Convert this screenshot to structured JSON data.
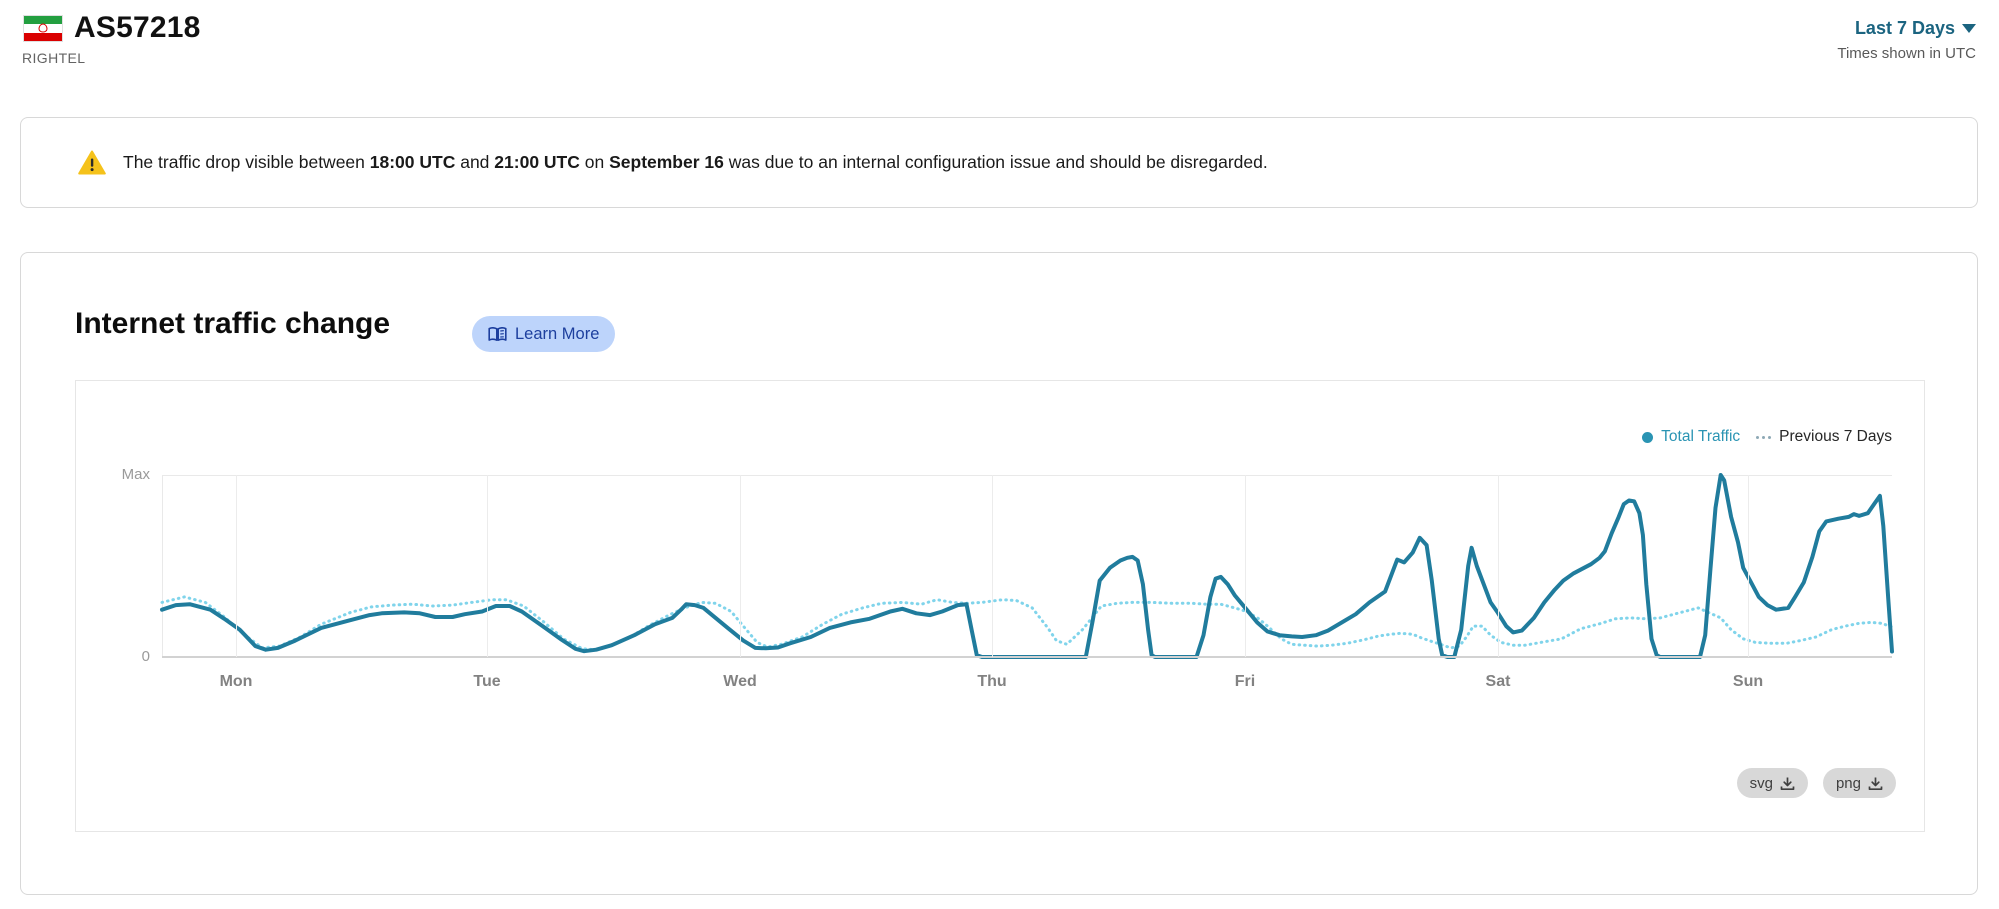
{
  "header": {
    "asn": "AS57218",
    "org": "RIGHTEL",
    "flag": "iran-flag",
    "range_label": "Last 7 Days",
    "tz_note": "Times shown in UTC"
  },
  "notice": {
    "icon": "warning-icon",
    "pre": "The traffic drop visible between ",
    "b1": "18:00 UTC",
    "mid1": " and ",
    "b2": "21:00 UTC",
    "mid2": " on ",
    "b3": "September 16",
    "post": " was due to an internal configuration issue and should be disregarded."
  },
  "card": {
    "title": "Internet traffic change",
    "learn_more_label": "Learn More"
  },
  "downloads": {
    "svg_label": "svg",
    "png_label": "png"
  },
  "chart_data": {
    "type": "line",
    "title": "Internet traffic change",
    "y_axis": {
      "max_label": "Max",
      "zero_label": "0",
      "range": [
        0,
        1
      ]
    },
    "x_axis": {
      "ticks": [
        {
          "label": "Mon",
          "t": 0.043
        },
        {
          "label": "Tue",
          "t": 0.188
        },
        {
          "label": "Wed",
          "t": 0.334
        },
        {
          "label": "Thu",
          "t": 0.48
        },
        {
          "label": "Fri",
          "t": 0.626
        },
        {
          "label": "Sat",
          "t": 0.772
        },
        {
          "label": "Sun",
          "t": 0.917
        }
      ]
    },
    "legend": [
      {
        "label": "Total Traffic",
        "color": "#2a94b3",
        "style": "solid"
      },
      {
        "label": "Previous 7 Days",
        "color": "#80d4eb",
        "style": "dotted"
      }
    ],
    "series": [
      {
        "name": "Previous 7 Days",
        "color": "#80d4eb",
        "style": "dotted",
        "width": 3,
        "points": [
          [
            0,
            0.3
          ],
          [
            0.013,
            0.33
          ],
          [
            0.025,
            0.3
          ],
          [
            0.036,
            0.22
          ],
          [
            0.048,
            0.12
          ],
          [
            0.058,
            0.05
          ],
          [
            0.068,
            0.06
          ],
          [
            0.08,
            0.11
          ],
          [
            0.092,
            0.18
          ],
          [
            0.109,
            0.245
          ],
          [
            0.121,
            0.275
          ],
          [
            0.133,
            0.285
          ],
          [
            0.145,
            0.29
          ],
          [
            0.156,
            0.28
          ],
          [
            0.168,
            0.285
          ],
          [
            0.179,
            0.3
          ],
          [
            0.191,
            0.315
          ],
          [
            0.199,
            0.315
          ],
          [
            0.209,
            0.28
          ],
          [
            0.221,
            0.19
          ],
          [
            0.232,
            0.1
          ],
          [
            0.243,
            0.045
          ],
          [
            0.25,
            0.04
          ],
          [
            0.258,
            0.06
          ],
          [
            0.269,
            0.1
          ],
          [
            0.281,
            0.17
          ],
          [
            0.293,
            0.23
          ],
          [
            0.302,
            0.27
          ],
          [
            0.312,
            0.3
          ],
          [
            0.32,
            0.295
          ],
          [
            0.329,
            0.25
          ],
          [
            0.336,
            0.17
          ],
          [
            0.344,
            0.08
          ],
          [
            0.35,
            0.055
          ],
          [
            0.358,
            0.07
          ],
          [
            0.37,
            0.11
          ],
          [
            0.382,
            0.18
          ],
          [
            0.393,
            0.235
          ],
          [
            0.405,
            0.27
          ],
          [
            0.416,
            0.295
          ],
          [
            0.428,
            0.3
          ],
          [
            0.439,
            0.29
          ],
          [
            0.448,
            0.315
          ],
          [
            0.457,
            0.3
          ],
          [
            0.465,
            0.295
          ],
          [
            0.474,
            0.3
          ],
          [
            0.486,
            0.315
          ],
          [
            0.494,
            0.31
          ],
          [
            0.503,
            0.27
          ],
          [
            0.512,
            0.16
          ],
          [
            0.517,
            0.09
          ],
          [
            0.523,
            0.07
          ],
          [
            0.532,
            0.15
          ],
          [
            0.538,
            0.22
          ],
          [
            0.543,
            0.28
          ],
          [
            0.552,
            0.295
          ],
          [
            0.561,
            0.3
          ],
          [
            0.572,
            0.3
          ],
          [
            0.584,
            0.295
          ],
          [
            0.595,
            0.295
          ],
          [
            0.604,
            0.29
          ],
          [
            0.612,
            0.29
          ],
          [
            0.62,
            0.27
          ],
          [
            0.627,
            0.25
          ],
          [
            0.634,
            0.21
          ],
          [
            0.639,
            0.17
          ],
          [
            0.647,
            0.1
          ],
          [
            0.653,
            0.07
          ],
          [
            0.66,
            0.065
          ],
          [
            0.668,
            0.06
          ],
          [
            0.676,
            0.065
          ],
          [
            0.685,
            0.075
          ],
          [
            0.695,
            0.095
          ],
          [
            0.703,
            0.115
          ],
          [
            0.71,
            0.125
          ],
          [
            0.716,
            0.13
          ],
          [
            0.723,
            0.125
          ],
          [
            0.728,
            0.105
          ],
          [
            0.734,
            0.085
          ],
          [
            0.739,
            0.07
          ],
          [
            0.745,
            0.05
          ],
          [
            0.75,
            0.06
          ],
          [
            0.754,
            0.11
          ],
          [
            0.758,
            0.17
          ],
          [
            0.763,
            0.17
          ],
          [
            0.768,
            0.12
          ],
          [
            0.774,
            0.08
          ],
          [
            0.781,
            0.065
          ],
          [
            0.788,
            0.065
          ],
          [
            0.797,
            0.08
          ],
          [
            0.809,
            0.1
          ],
          [
            0.82,
            0.155
          ],
          [
            0.832,
            0.185
          ],
          [
            0.84,
            0.21
          ],
          [
            0.849,
            0.215
          ],
          [
            0.858,
            0.21
          ],
          [
            0.866,
            0.215
          ],
          [
            0.876,
            0.24
          ],
          [
            0.884,
            0.26
          ],
          [
            0.888,
            0.27
          ],
          [
            0.895,
            0.24
          ],
          [
            0.901,
            0.215
          ],
          [
            0.907,
            0.15
          ],
          [
            0.914,
            0.1
          ],
          [
            0.921,
            0.08
          ],
          [
            0.93,
            0.075
          ],
          [
            0.939,
            0.075
          ],
          [
            0.947,
            0.09
          ],
          [
            0.956,
            0.11
          ],
          [
            0.965,
            0.15
          ],
          [
            0.973,
            0.17
          ],
          [
            0.981,
            0.185
          ],
          [
            0.988,
            0.19
          ],
          [
            0.994,
            0.185
          ],
          [
            1,
            0.165
          ]
        ]
      },
      {
        "name": "Total Traffic",
        "color": "#207c9d",
        "style": "solid",
        "width": 4,
        "points": [
          [
            0,
            0.26
          ],
          [
            0.008,
            0.285
          ],
          [
            0.016,
            0.29
          ],
          [
            0.028,
            0.26
          ],
          [
            0.036,
            0.21
          ],
          [
            0.045,
            0.15
          ],
          [
            0.054,
            0.06
          ],
          [
            0.06,
            0.04
          ],
          [
            0.067,
            0.05
          ],
          [
            0.077,
            0.09
          ],
          [
            0.092,
            0.16
          ],
          [
            0.108,
            0.2
          ],
          [
            0.12,
            0.23
          ],
          [
            0.127,
            0.24
          ],
          [
            0.14,
            0.245
          ],
          [
            0.149,
            0.24
          ],
          [
            0.158,
            0.22
          ],
          [
            0.168,
            0.22
          ],
          [
            0.175,
            0.235
          ],
          [
            0.185,
            0.25
          ],
          [
            0.193,
            0.28
          ],
          [
            0.201,
            0.28
          ],
          [
            0.208,
            0.25
          ],
          [
            0.22,
            0.17
          ],
          [
            0.231,
            0.095
          ],
          [
            0.239,
            0.045
          ],
          [
            0.244,
            0.032
          ],
          [
            0.251,
            0.04
          ],
          [
            0.26,
            0.065
          ],
          [
            0.273,
            0.12
          ],
          [
            0.285,
            0.18
          ],
          [
            0.295,
            0.215
          ],
          [
            0.3,
            0.26
          ],
          [
            0.303,
            0.29
          ],
          [
            0.308,
            0.285
          ],
          [
            0.313,
            0.27
          ],
          [
            0.327,
            0.16
          ],
          [
            0.336,
            0.09
          ],
          [
            0.343,
            0.05
          ],
          [
            0.349,
            0.048
          ],
          [
            0.356,
            0.052
          ],
          [
            0.363,
            0.075
          ],
          [
            0.375,
            0.11
          ],
          [
            0.386,
            0.16
          ],
          [
            0.398,
            0.19
          ],
          [
            0.409,
            0.21
          ],
          [
            0.421,
            0.25
          ],
          [
            0.428,
            0.265
          ],
          [
            0.436,
            0.24
          ],
          [
            0.444,
            0.23
          ],
          [
            0.451,
            0.25
          ],
          [
            0.46,
            0.285
          ],
          [
            0.465,
            0.29
          ],
          [
            0.468,
            0.15
          ],
          [
            0.471,
            0.01
          ],
          [
            0.474,
            0
          ],
          [
            0.534,
            0
          ],
          [
            0.538,
            0.2
          ],
          [
            0.542,
            0.42
          ],
          [
            0.548,
            0.49
          ],
          [
            0.554,
            0.53
          ],
          [
            0.558,
            0.545
          ],
          [
            0.561,
            0.55
          ],
          [
            0.564,
            0.53
          ],
          [
            0.567,
            0.4
          ],
          [
            0.57,
            0.15
          ],
          [
            0.572,
            0.01
          ],
          [
            0.574,
            0
          ],
          [
            0.598,
            0
          ],
          [
            0.602,
            0.12
          ],
          [
            0.606,
            0.33
          ],
          [
            0.609,
            0.43
          ],
          [
            0.612,
            0.44
          ],
          [
            0.616,
            0.4
          ],
          [
            0.62,
            0.34
          ],
          [
            0.627,
            0.26
          ],
          [
            0.633,
            0.19
          ],
          [
            0.639,
            0.14
          ],
          [
            0.646,
            0.12
          ],
          [
            0.653,
            0.113
          ],
          [
            0.659,
            0.11
          ],
          [
            0.667,
            0.12
          ],
          [
            0.674,
            0.145
          ],
          [
            0.682,
            0.19
          ],
          [
            0.69,
            0.235
          ],
          [
            0.698,
            0.3
          ],
          [
            0.707,
            0.36
          ],
          [
            0.711,
            0.46
          ],
          [
            0.714,
            0.535
          ],
          [
            0.718,
            0.52
          ],
          [
            0.723,
            0.575
          ],
          [
            0.727,
            0.655
          ],
          [
            0.731,
            0.615
          ],
          [
            0.734,
            0.42
          ],
          [
            0.738,
            0.1
          ],
          [
            0.74,
            0.01
          ],
          [
            0.743,
            0
          ],
          [
            0.747,
            0
          ],
          [
            0.751,
            0.15
          ],
          [
            0.755,
            0.5
          ],
          [
            0.757,
            0.6
          ],
          [
            0.76,
            0.5
          ],
          [
            0.764,
            0.4
          ],
          [
            0.768,
            0.3
          ],
          [
            0.772,
            0.245
          ],
          [
            0.777,
            0.17
          ],
          [
            0.781,
            0.135
          ],
          [
            0.786,
            0.145
          ],
          [
            0.793,
            0.215
          ],
          [
            0.799,
            0.3
          ],
          [
            0.805,
            0.37
          ],
          [
            0.81,
            0.42
          ],
          [
            0.816,
            0.46
          ],
          [
            0.822,
            0.49
          ],
          [
            0.826,
            0.51
          ],
          [
            0.831,
            0.545
          ],
          [
            0.834,
            0.58
          ],
          [
            0.838,
            0.68
          ],
          [
            0.842,
            0.77
          ],
          [
            0.845,
            0.84
          ],
          [
            0.848,
            0.86
          ],
          [
            0.851,
            0.855
          ],
          [
            0.854,
            0.79
          ],
          [
            0.856,
            0.67
          ],
          [
            0.858,
            0.4
          ],
          [
            0.861,
            0.1
          ],
          [
            0.864,
            0.01
          ],
          [
            0.866,
            0
          ],
          [
            0.889,
            0
          ],
          [
            0.892,
            0.12
          ],
          [
            0.895,
            0.48
          ],
          [
            0.898,
            0.82
          ],
          [
            0.901,
            1
          ],
          [
            0.903,
            0.97
          ],
          [
            0.907,
            0.77
          ],
          [
            0.911,
            0.63
          ],
          [
            0.914,
            0.49
          ],
          [
            0.918,
            0.42
          ],
          [
            0.923,
            0.33
          ],
          [
            0.928,
            0.285
          ],
          [
            0.933,
            0.26
          ],
          [
            0.94,
            0.27
          ],
          [
            0.944,
            0.33
          ],
          [
            0.949,
            0.41
          ],
          [
            0.954,
            0.55
          ],
          [
            0.958,
            0.69
          ],
          [
            0.962,
            0.745
          ],
          [
            0.969,
            0.76
          ],
          [
            0.975,
            0.77
          ],
          [
            0.978,
            0.785
          ],
          [
            0.981,
            0.775
          ],
          [
            0.986,
            0.79
          ],
          [
            0.99,
            0.845
          ],
          [
            0.993,
            0.885
          ],
          [
            0.995,
            0.72
          ],
          [
            0.998,
            0.3
          ],
          [
            1,
            0.03
          ]
        ]
      }
    ]
  }
}
